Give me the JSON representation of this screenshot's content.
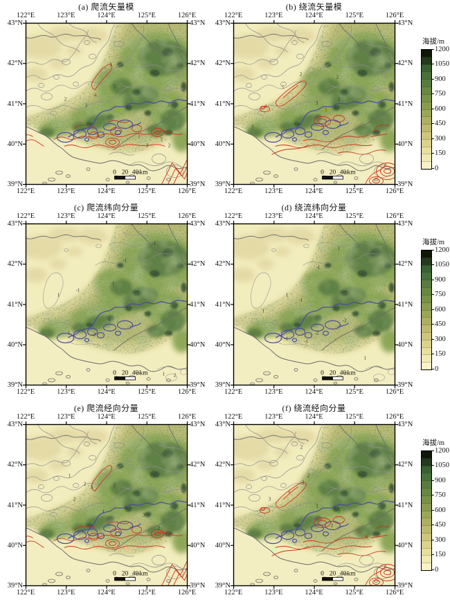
{
  "panels": [
    {
      "id": "a",
      "title": "(a) 爬流矢量模",
      "gray": "dense",
      "red": "A",
      "labels": [
        [
          "2",
          57,
          112,
          "g"
        ],
        [
          "3",
          122,
          62,
          "g"
        ],
        [
          "3",
          87,
          121,
          "g"
        ],
        [
          "4",
          100,
          106,
          "r"
        ],
        [
          "5",
          128,
          94,
          "g"
        ],
        [
          "2",
          206,
          120,
          "g"
        ],
        [
          "3",
          163,
          166,
          "r"
        ],
        [
          "2",
          196,
          170,
          "g"
        ],
        [
          "3",
          175,
          179,
          "g"
        ],
        [
          "2",
          207,
          179,
          "g"
        ]
      ]
    },
    {
      "id": "b",
      "title": "(b) 绕流矢量模",
      "gray": "dense",
      "red": "B",
      "labels": [
        [
          "2",
          97,
          76,
          "g"
        ],
        [
          "2",
          150,
          80,
          "g"
        ],
        [
          "5",
          71,
          95,
          "r"
        ],
        [
          "4",
          46,
          122,
          "r"
        ],
        [
          "3",
          133,
          128,
          "r"
        ],
        [
          "2",
          152,
          112,
          "g"
        ],
        [
          "6",
          205,
          157,
          "r"
        ],
        [
          "3",
          27,
          152,
          "g"
        ],
        [
          "3",
          120,
          118,
          "g"
        ]
      ]
    },
    {
      "id": "c",
      "title": "(c) 爬流纬向分量",
      "gray": "sparse",
      "red": "",
      "labels": [
        [
          "-1",
          143,
          55,
          "g"
        ],
        [
          "-1",
          185,
          30,
          "g"
        ],
        [
          "-1",
          125,
          88,
          "g"
        ],
        [
          "1",
          47,
          105,
          "g"
        ],
        [
          "-1",
          120,
          140,
          "g"
        ],
        [
          "-2",
          98,
          162,
          "g"
        ],
        [
          "1",
          62,
          160,
          "g"
        ],
        [
          "2",
          215,
          221,
          "g"
        ],
        [
          "1",
          199,
          219,
          "g"
        ],
        [
          "-1",
          75,
          98,
          "g"
        ]
      ]
    },
    {
      "id": "d",
      "title": "(d) 绕流纬向分量",
      "gray": "sparse",
      "red": "",
      "labels": [
        [
          "1",
          152,
          38,
          "g"
        ],
        [
          "-1",
          122,
          65,
          "g"
        ],
        [
          "1",
          77,
          105,
          "g"
        ],
        [
          "-1",
          97,
          112,
          "g"
        ],
        [
          "1",
          43,
          128,
          "g"
        ],
        [
          "-2",
          120,
          160,
          "g"
        ],
        [
          "-1",
          105,
          172,
          "g"
        ],
        [
          "1",
          190,
          196,
          "g"
        ],
        [
          "-1",
          76,
          168,
          "g"
        ],
        [
          "-2",
          160,
          142,
          "g"
        ]
      ]
    },
    {
      "id": "e",
      "title": "(e) 爬流经向分量",
      "gray": "dense",
      "red": "A",
      "labels": [
        [
          "1",
          63,
          76,
          "g"
        ],
        [
          "2",
          85,
          88,
          "g"
        ],
        [
          "3",
          95,
          93,
          "g"
        ],
        [
          "2",
          70,
          110,
          "g"
        ],
        [
          "3",
          143,
          122,
          "g"
        ],
        [
          "2",
          117,
          140,
          "r"
        ],
        [
          "3",
          170,
          133,
          "g"
        ],
        [
          "2",
          192,
          152,
          "g"
        ],
        [
          "1",
          112,
          128,
          "g"
        ],
        [
          "2",
          128,
          90,
          "g"
        ]
      ]
    },
    {
      "id": "f",
      "title": "(f) 绕流经向分量",
      "gray": "dense",
      "red": "B",
      "labels": [
        [
          "2",
          98,
          35,
          "g"
        ],
        [
          "2",
          108,
          76,
          "g"
        ],
        [
          "3",
          100,
          86,
          "g"
        ],
        [
          "4",
          80,
          99,
          "r"
        ],
        [
          "3",
          52,
          110,
          "g"
        ],
        [
          "3",
          152,
          128,
          "g"
        ],
        [
          "6",
          192,
          165,
          "r"
        ],
        [
          "5",
          182,
          157,
          "r"
        ],
        [
          "2",
          142,
          148,
          "g"
        ],
        [
          "3",
          120,
          120,
          "g"
        ]
      ]
    }
  ],
  "axes": {
    "lon": [
      "122°E",
      "123°E",
      "124°E",
      "125°E",
      "126°E"
    ],
    "lat": [
      "43°N",
      "42°N",
      "41°N",
      "40°N",
      "39°N"
    ]
  },
  "colorbar": {
    "label": "海拔/m",
    "ticks": [
      "1200",
      "1050",
      "900",
      "750",
      "600",
      "450",
      "300",
      "150",
      "0"
    ],
    "colors_bottom_to_top": [
      "#f8f2c6",
      "#f0e9b2",
      "#e7df9e",
      "#dbd28c",
      "#cdc57c",
      "#bdb96e",
      "#adaf63",
      "#9ca65a",
      "#8a9b51",
      "#789149",
      "#688745",
      "#587c40",
      "#48703a",
      "#3a5f33",
      "#24391e",
      "#101708"
    ]
  },
  "scalebar": {
    "labels": [
      "0",
      "20",
      "40"
    ],
    "unit": "km"
  },
  "map_colors": {
    "land_base": "#f2edbd",
    "sea": "#f3eec1",
    "tan_patch": "#e2d8a4",
    "terrain_low": "#d8d294",
    "terrain_mid": "#b9ba74",
    "terrain_green": "#8da758",
    "terrain_dark": "#5e8044",
    "terrain_darkest": "#2f4c2e",
    "gray_contour": "#8f8f8f",
    "coastline": "#6b6b6b",
    "river_purple": "#4d4d9b",
    "red_contour": "#cf3318",
    "frame": "#000000",
    "gray_label": "#33332b",
    "red_label": "#b53012"
  }
}
